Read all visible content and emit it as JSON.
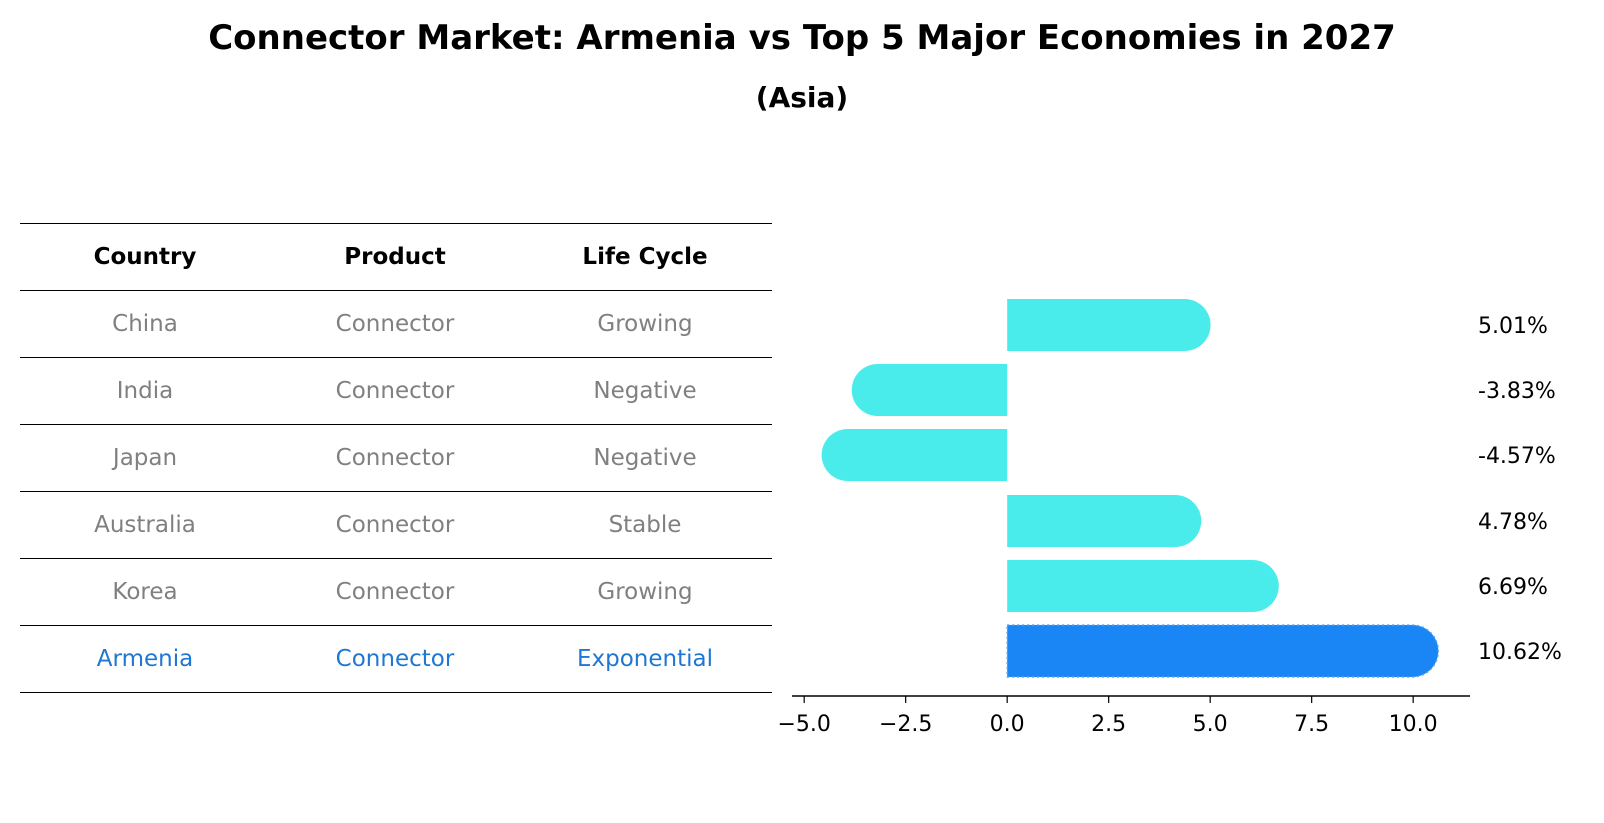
{
  "title": "Connector Market: Armenia vs Top 5 Major Economies in 2027",
  "subtitle": "(Asia)",
  "table": {
    "headers": [
      "Country",
      "Product",
      "Life Cycle"
    ],
    "rows": [
      [
        "China",
        "Connector",
        "Growing"
      ],
      [
        "India",
        "Connector",
        "Negative"
      ],
      [
        "Japan",
        "Connector",
        "Negative"
      ],
      [
        "Australia",
        "Connector",
        "Stable"
      ],
      [
        "Korea",
        "Connector",
        "Growing"
      ],
      [
        "Armenia",
        "Connector",
        "Exponential"
      ]
    ]
  },
  "colors": {
    "bar": "#4aeceb",
    "highlight": "#1a86f5",
    "highlight_text": "#1f77d4",
    "muted_text": "#808080"
  },
  "chart_data": {
    "type": "bar",
    "orientation": "horizontal",
    "categories": [
      "China",
      "India",
      "Japan",
      "Australia",
      "Korea",
      "Armenia"
    ],
    "values": [
      5.01,
      -3.83,
      -4.57,
      4.78,
      6.69,
      10.62
    ],
    "value_labels": [
      "5.01%",
      "-3.83%",
      "-4.57%",
      "4.78%",
      "6.69%",
      "10.62%"
    ],
    "highlight_index": 5,
    "xlim": [
      -5.3,
      11.4
    ],
    "xticks": [
      -5.0,
      -2.5,
      0.0,
      2.5,
      5.0,
      7.5,
      10.0
    ],
    "xtick_labels": [
      "−5.0",
      "−2.5",
      "0.0",
      "2.5",
      "5.0",
      "7.5",
      "10.0"
    ],
    "xlabel": "",
    "ylabel": "",
    "grid": false,
    "legend": "none"
  }
}
